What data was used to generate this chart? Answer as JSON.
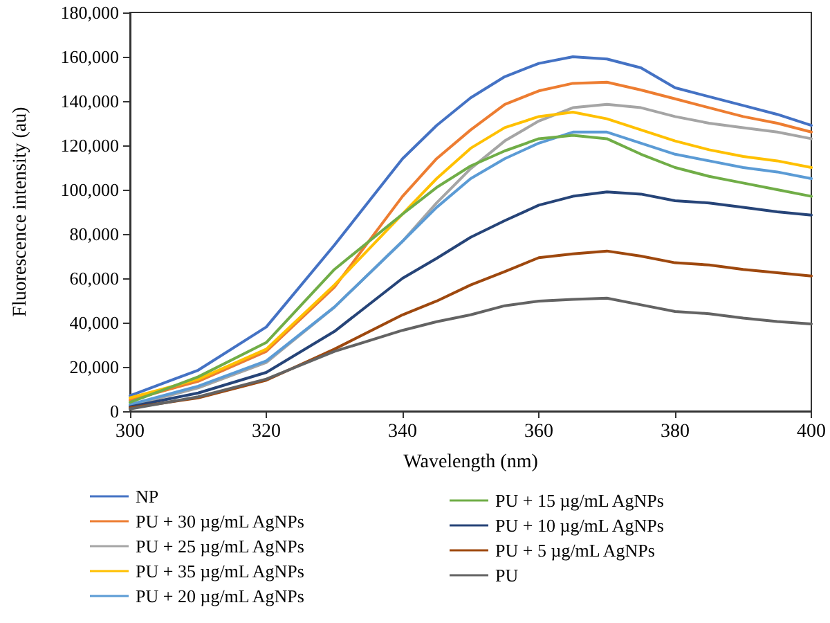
{
  "chart_data": {
    "type": "line",
    "xlabel": "Wavelength (nm)",
    "ylabel": "Fluorescence intensity (au)",
    "x": [
      300,
      310,
      320,
      330,
      340,
      345,
      350,
      355,
      360,
      365,
      370,
      375,
      380,
      385,
      390,
      395,
      400
    ],
    "series": [
      {
        "name": "NP",
        "color": "#4472c4",
        "values": [
          7000,
          18500,
          38000,
          75000,
          114000,
          129000,
          141500,
          151000,
          157000,
          160000,
          159000,
          155000,
          146000,
          142000,
          138000,
          134000,
          129000
        ]
      },
      {
        "name": "PU + 30 µg/mL AgNPs",
        "color": "#ed7d31",
        "values": [
          5000,
          13500,
          27000,
          56000,
          97000,
          114000,
          127000,
          138500,
          144600,
          148000,
          148500,
          145000,
          141000,
          137000,
          133000,
          130000,
          126000
        ]
      },
      {
        "name": "PU + 25 µg/mL AgNPs",
        "color": "#a5a5a5",
        "values": [
          2500,
          10500,
          22000,
          47000,
          76700,
          94000,
          109500,
          122000,
          131000,
          137000,
          138500,
          137000,
          133000,
          130000,
          128000,
          126000,
          123000
        ]
      },
      {
        "name": "PU + 35 µg/mL AgNPs",
        "color": "#ffc000",
        "values": [
          6000,
          14400,
          28000,
          57000,
          89000,
          105000,
          118700,
          128000,
          133000,
          135000,
          132000,
          127000,
          122000,
          118000,
          115000,
          113000,
          110000
        ]
      },
      {
        "name": "PU + 20 µg/mL AgNPs",
        "color": "#5b9bd5",
        "values": [
          3000,
          11300,
          22700,
          47000,
          76700,
          92000,
          105000,
          114000,
          121000,
          126000,
          126000,
          121000,
          116000,
          113000,
          110000,
          108000,
          105000
        ]
      },
      {
        "name": "PU + 15 µg/mL AgNPs",
        "color": "#70ad47",
        "values": [
          4000,
          15500,
          31000,
          64000,
          89000,
          101000,
          110700,
          117500,
          123000,
          124500,
          123000,
          116000,
          110000,
          106000,
          103000,
          100000,
          97000
        ]
      },
      {
        "name": "PU + 10 µg/mL AgNPs",
        "color": "#264478",
        "values": [
          2000,
          8200,
          17500,
          36000,
          60000,
          69000,
          78500,
          86000,
          93000,
          97000,
          99000,
          98000,
          95000,
          94000,
          92000,
          90000,
          88500
        ]
      },
      {
        "name": "PU + 5 µg/mL AgNPs",
        "color": "#9e480e",
        "values": [
          1500,
          6000,
          14000,
          28000,
          43500,
          49700,
          57000,
          63000,
          69300,
          71000,
          72300,
          70000,
          67000,
          66000,
          64000,
          62500,
          61000
        ]
      },
      {
        "name": "PU",
        "color": "#636363",
        "values": [
          1000,
          6500,
          14500,
          27000,
          36500,
          40400,
          43500,
          47600,
          49700,
          50500,
          51000,
          48000,
          45000,
          44000,
          42000,
          40500,
          39400
        ]
      }
    ],
    "xlim": [
      300,
      400
    ],
    "xticks": [
      300,
      320,
      340,
      360,
      380,
      400
    ],
    "ylim": [
      0,
      180000
    ],
    "yticks": [
      0,
      {
        "value": 20000,
        "label": "20,000"
      },
      {
        "value": 40000,
        "label": "40,000"
      },
      {
        "value": 60000,
        "label": "60,000"
      },
      {
        "value": 80000,
        "label": "80,000"
      },
      {
        "value": 100000,
        "label": "100,000"
      },
      {
        "value": 120000,
        "label": "120,000"
      },
      {
        "value": 140000,
        "label": "140,000"
      },
      {
        "value": 160000,
        "label": "160,000"
      },
      {
        "value": 180000,
        "label": "180,000"
      }
    ],
    "grid": false,
    "legend": "bottom",
    "marker": "none",
    "line_style": "solid"
  }
}
